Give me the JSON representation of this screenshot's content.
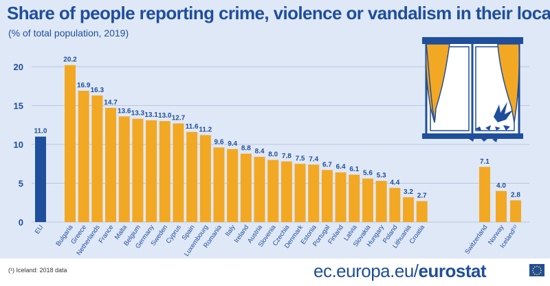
{
  "title": "Share of people reporting crime, violence or vandalism in their local area",
  "subtitle": "(% of total population, 2019)",
  "footnote": "(¹) Iceland: 2018 data",
  "source_prefix": "ec.europa.eu/",
  "source_brand": "eurostat",
  "colors": {
    "eu_bar": "#1f4e9c",
    "country_bar": "#f3a823",
    "background": "#dfe8f6",
    "text": "#1f4e9c"
  },
  "icons": {
    "illustration": "window-with-broken-glass-icon",
    "flag": "eu-flag-icon"
  },
  "chart_data": {
    "type": "bar",
    "ylim": [
      0,
      21
    ],
    "yticks": [
      0,
      5,
      10,
      15,
      20
    ],
    "grid": true,
    "categories": [
      "EU",
      "Bulgaria",
      "Greece",
      "Netherlands",
      "France",
      "Malta",
      "Belgium",
      "Germany",
      "Sweden",
      "Cyprus",
      "Spain",
      "Luxembourg",
      "Romania",
      "Italy",
      "Ireland",
      "Austria",
      "Slovenia",
      "Czechia",
      "Denmark",
      "Estonia",
      "Portugal",
      "Finland",
      "Latvia",
      "Slovakia",
      "Hungary",
      "Poland",
      "Lithuania",
      "Croatia",
      "Switzerland",
      "Norway",
      "Iceland⁽¹⁾"
    ],
    "values": [
      11.0,
      20.2,
      16.9,
      16.3,
      14.7,
      13.6,
      13.3,
      13.1,
      13.0,
      12.7,
      11.6,
      11.2,
      9.6,
      9.4,
      8.8,
      8.4,
      8.0,
      7.8,
      7.5,
      7.4,
      6.7,
      6.4,
      6.1,
      5.6,
      5.3,
      4.4,
      3.2,
      2.7,
      7.1,
      4.0,
      2.8
    ],
    "value_labels": [
      "11.0",
      "20.2",
      "16.9",
      "16.3",
      "14.7",
      "13.6",
      "13.3",
      "13.1",
      "13.0",
      "12.7",
      "11.6",
      "11.2",
      "9.6",
      "9.4",
      "8.8",
      "8.4",
      "8.0",
      "7.8",
      "7.5",
      "7.4",
      "6.7",
      "6.4",
      "6.1",
      "5.6",
      "5.3",
      "4.4",
      "3.2",
      "2.7",
      "7.1",
      "4.0",
      "2.8"
    ],
    "groups": [
      "eu",
      "country",
      "country",
      "country",
      "country",
      "country",
      "country",
      "country",
      "country",
      "country",
      "country",
      "country",
      "country",
      "country",
      "country",
      "country",
      "country",
      "country",
      "country",
      "country",
      "country",
      "country",
      "country",
      "country",
      "country",
      "country",
      "country",
      "country",
      "non-eu",
      "non-eu",
      "non-eu"
    ]
  }
}
